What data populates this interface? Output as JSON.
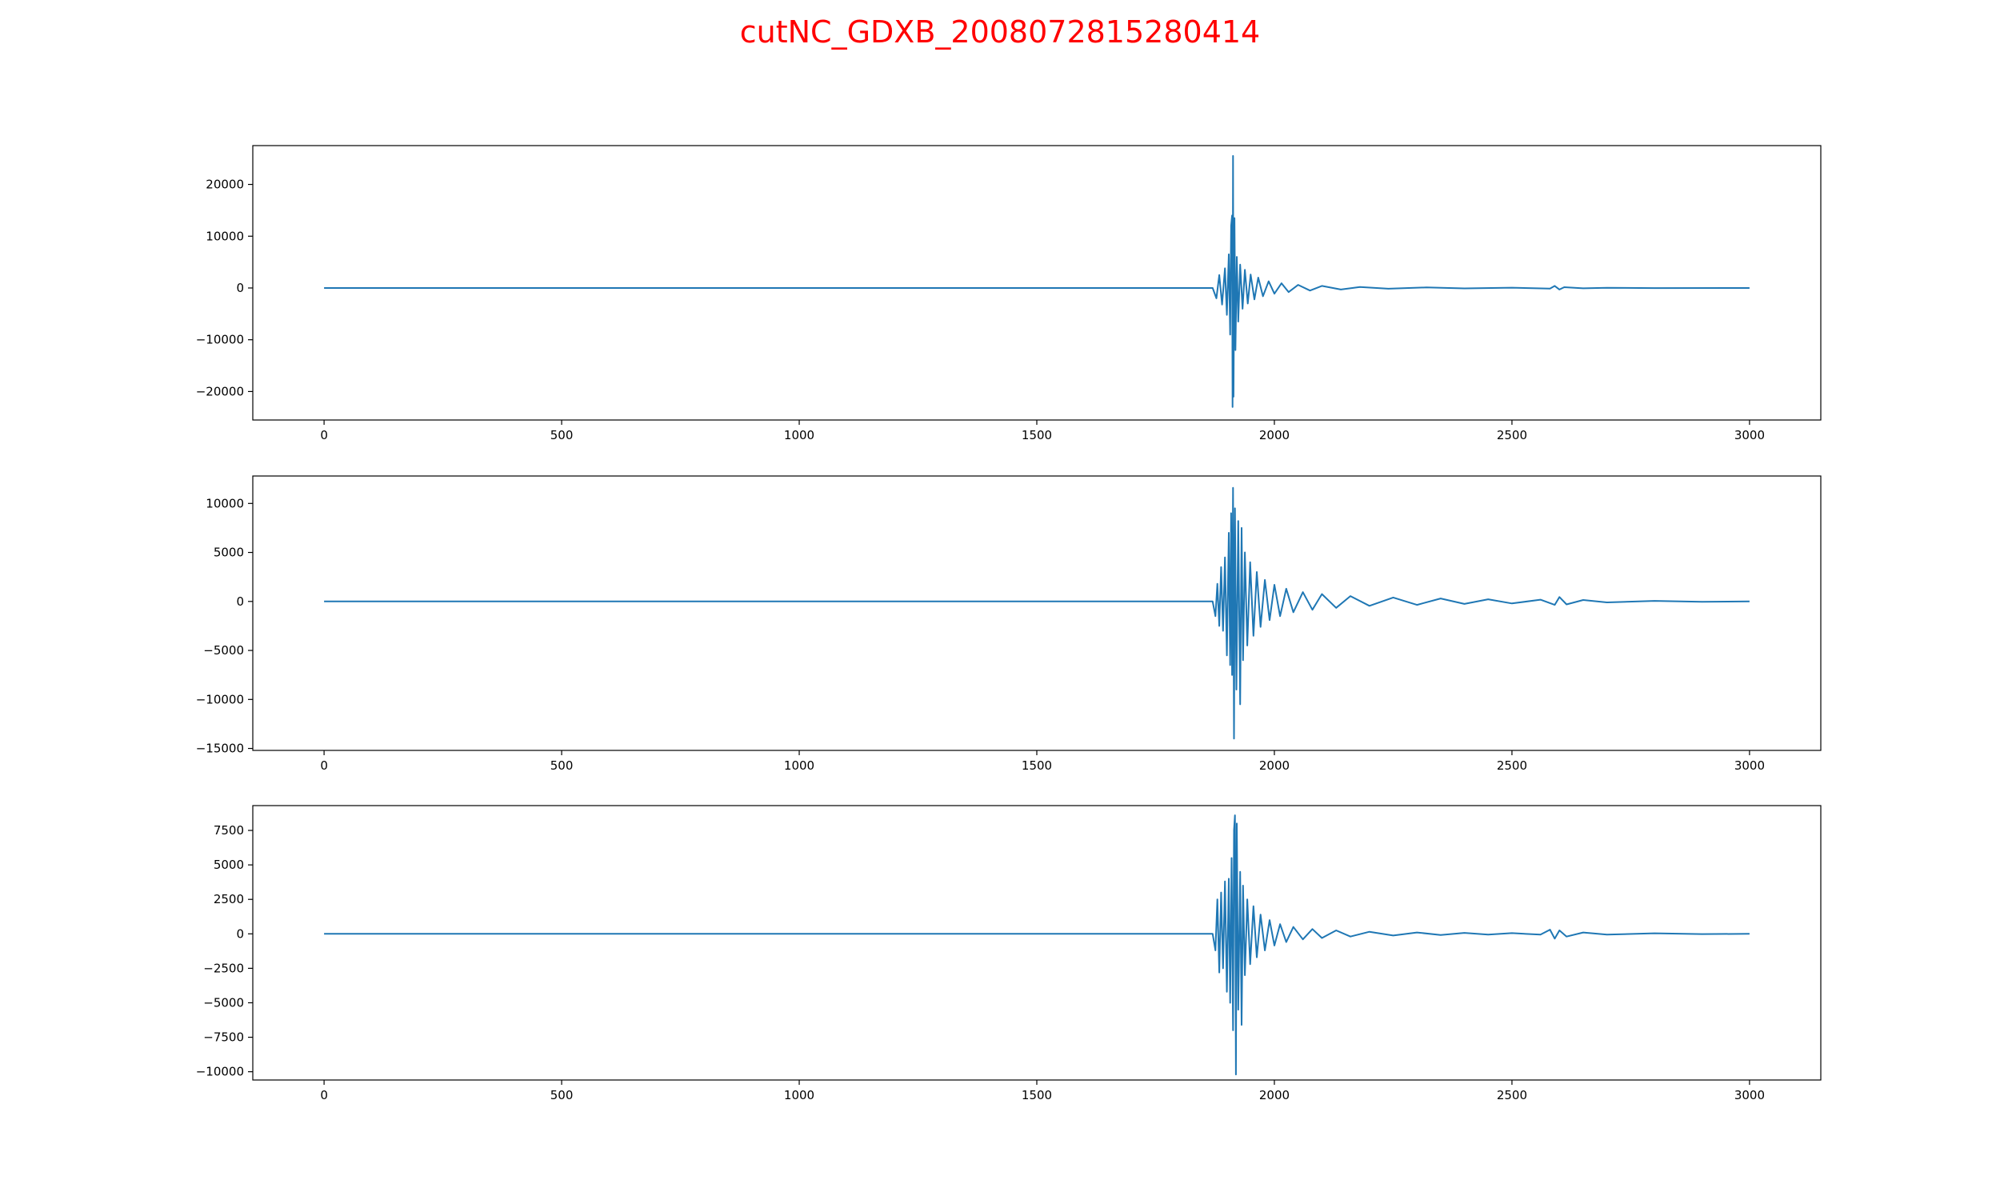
{
  "title": "cutNC_GDXB_2008072815280414",
  "colors": {
    "title": "#ff0000",
    "line": "#1f77b4",
    "axes": "#000000",
    "background": "#ffffff"
  },
  "chart_data": [
    {
      "type": "line",
      "xlim": [
        -150,
        3150
      ],
      "ylim": [
        -25500,
        27500
      ],
      "x_ticks": [
        0,
        500,
        1000,
        1500,
        2000,
        2500,
        3000
      ],
      "y_ticks": [
        -20000,
        -10000,
        0,
        10000,
        20000
      ],
      "grid": false,
      "series": [
        {
          "points": [
            [
              0,
              0
            ],
            [
              1870,
              0
            ],
            [
              1878,
              -2000
            ],
            [
              1884,
              2500
            ],
            [
              1890,
              -3200
            ],
            [
              1896,
              3800
            ],
            [
              1900,
              -5200
            ],
            [
              1904,
              6500
            ],
            [
              1907,
              -9000
            ],
            [
              1909,
              12000
            ],
            [
              1911,
              14000
            ],
            [
              1912,
              -23000
            ],
            [
              1913,
              25500
            ],
            [
              1914,
              -21000
            ],
            [
              1916,
              13500
            ],
            [
              1918,
              -12000
            ],
            [
              1921,
              6000
            ],
            [
              1924,
              -6500
            ],
            [
              1928,
              4500
            ],
            [
              1933,
              -4000
            ],
            [
              1938,
              3500
            ],
            [
              1944,
              -3000
            ],
            [
              1950,
              2600
            ],
            [
              1958,
              -2200
            ],
            [
              1966,
              2000
            ],
            [
              1976,
              -1600
            ],
            [
              1988,
              1300
            ],
            [
              2000,
              -1100
            ],
            [
              2015,
              900
            ],
            [
              2030,
              -800
            ],
            [
              2050,
              600
            ],
            [
              2075,
              -500
            ],
            [
              2100,
              400
            ],
            [
              2140,
              -300
            ],
            [
              2180,
              200
            ],
            [
              2240,
              -150
            ],
            [
              2320,
              100
            ],
            [
              2400,
              -80
            ],
            [
              2500,
              60
            ],
            [
              2580,
              -120
            ],
            [
              2590,
              400
            ],
            [
              2600,
              -300
            ],
            [
              2610,
              150
            ],
            [
              2650,
              -60
            ],
            [
              2700,
              40
            ],
            [
              2800,
              -20
            ],
            [
              3000,
              0
            ]
          ]
        }
      ]
    },
    {
      "type": "line",
      "xlim": [
        -150,
        3150
      ],
      "ylim": [
        -15200,
        12800
      ],
      "x_ticks": [
        0,
        500,
        1000,
        1500,
        2000,
        2500,
        3000
      ],
      "y_ticks": [
        -15000,
        -10000,
        -5000,
        0,
        5000,
        10000
      ],
      "grid": false,
      "series": [
        {
          "points": [
            [
              0,
              0
            ],
            [
              1870,
              0
            ],
            [
              1876,
              -1500
            ],
            [
              1880,
              1800
            ],
            [
              1884,
              -2500
            ],
            [
              1888,
              3500
            ],
            [
              1892,
              -3000
            ],
            [
              1896,
              4500
            ],
            [
              1900,
              -5500
            ],
            [
              1904,
              7000
            ],
            [
              1907,
              -6500
            ],
            [
              1909,
              9000
            ],
            [
              1911,
              -7500
            ],
            [
              1913,
              11600
            ],
            [
              1915,
              -14000
            ],
            [
              1917,
              9500
            ],
            [
              1920,
              -9000
            ],
            [
              1924,
              8200
            ],
            [
              1928,
              -10500
            ],
            [
              1931,
              7500
            ],
            [
              1934,
              -6000
            ],
            [
              1938,
              5000
            ],
            [
              1943,
              -4500
            ],
            [
              1949,
              4000
            ],
            [
              1956,
              -3500
            ],
            [
              1963,
              3000
            ],
            [
              1971,
              -2600
            ],
            [
              1980,
              2200
            ],
            [
              1990,
              -1900
            ],
            [
              2000,
              1700
            ],
            [
              2012,
              -1500
            ],
            [
              2025,
              1300
            ],
            [
              2040,
              -1100
            ],
            [
              2060,
              950
            ],
            [
              2080,
              -850
            ],
            [
              2100,
              750
            ],
            [
              2130,
              -650
            ],
            [
              2160,
              550
            ],
            [
              2200,
              -450
            ],
            [
              2250,
              400
            ],
            [
              2300,
              -350
            ],
            [
              2350,
              300
            ],
            [
              2400,
              -250
            ],
            [
              2450,
              220
            ],
            [
              2500,
              -200
            ],
            [
              2560,
              180
            ],
            [
              2590,
              -350
            ],
            [
              2600,
              450
            ],
            [
              2615,
              -300
            ],
            [
              2650,
              150
            ],
            [
              2700,
              -100
            ],
            [
              2800,
              60
            ],
            [
              2900,
              -30
            ],
            [
              3000,
              0
            ]
          ]
        }
      ]
    },
    {
      "type": "line",
      "xlim": [
        -150,
        3150
      ],
      "ylim": [
        -10600,
        9300
      ],
      "x_ticks": [
        0,
        500,
        1000,
        1500,
        2000,
        2500,
        3000
      ],
      "y_ticks": [
        -10000,
        -7500,
        -5000,
        -2500,
        0,
        2500,
        5000,
        7500
      ],
      "grid": false,
      "series": [
        {
          "points": [
            [
              0,
              0
            ],
            [
              1870,
              0
            ],
            [
              1876,
              -1200
            ],
            [
              1880,
              2500
            ],
            [
              1884,
              -2800
            ],
            [
              1888,
              3000
            ],
            [
              1892,
              -2500
            ],
            [
              1896,
              3800
            ],
            [
              1900,
              -4200
            ],
            [
              1904,
              4000
            ],
            [
              1907,
              -5000
            ],
            [
              1910,
              5500
            ],
            [
              1913,
              -7000
            ],
            [
              1915,
              7500
            ],
            [
              1917,
              8600
            ],
            [
              1919,
              -10200
            ],
            [
              1921,
              8000
            ],
            [
              1924,
              -5500
            ],
            [
              1928,
              4500
            ],
            [
              1931,
              -6600
            ],
            [
              1934,
              3500
            ],
            [
              1938,
              -3000
            ],
            [
              1943,
              2500
            ],
            [
              1949,
              -2200
            ],
            [
              1956,
              2000
            ],
            [
              1963,
              -1700
            ],
            [
              1971,
              1400
            ],
            [
              1980,
              -1200
            ],
            [
              1990,
              1000
            ],
            [
              2000,
              -850
            ],
            [
              2012,
              700
            ],
            [
              2025,
              -600
            ],
            [
              2040,
              500
            ],
            [
              2060,
              -400
            ],
            [
              2080,
              350
            ],
            [
              2100,
              -300
            ],
            [
              2130,
              250
            ],
            [
              2160,
              -200
            ],
            [
              2200,
              150
            ],
            [
              2250,
              -120
            ],
            [
              2300,
              100
            ],
            [
              2350,
              -80
            ],
            [
              2400,
              70
            ],
            [
              2450,
              -60
            ],
            [
              2500,
              50
            ],
            [
              2560,
              -60
            ],
            [
              2580,
              300
            ],
            [
              2590,
              -350
            ],
            [
              2600,
              250
            ],
            [
              2615,
              -200
            ],
            [
              2650,
              100
            ],
            [
              2700,
              -60
            ],
            [
              2800,
              40
            ],
            [
              2900,
              -20
            ],
            [
              3000,
              0
            ]
          ]
        }
      ]
    }
  ]
}
